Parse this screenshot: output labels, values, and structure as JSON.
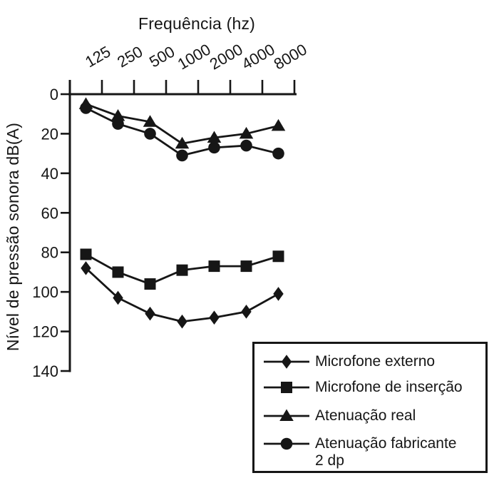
{
  "figure": {
    "background": "#ffffff",
    "ink": "#161616"
  },
  "chart_data": {
    "type": "line",
    "xlabel": "Frequência (hz)",
    "ylabel": "Nível de pressão sonora dB(A)",
    "x_axis_position": "top",
    "grid": false,
    "categories": [
      "125",
      "250",
      "500",
      "1000",
      "2000",
      "4000",
      "8000"
    ],
    "y_axis": {
      "inverted": true,
      "min": 0,
      "max": 140,
      "tick_step": 20,
      "ticks": [
        "0",
        "20",
        "40",
        "60",
        "80",
        "100",
        "120",
        "140"
      ]
    },
    "legend": {
      "position": "bottom-right",
      "boxed": true
    },
    "series": [
      {
        "name": "Microfone externo",
        "legend_lines": [
          "Microfone externo"
        ],
        "marker": "diamond",
        "color": "#161616",
        "values": [
          88,
          103,
          111,
          115,
          113,
          110,
          101
        ]
      },
      {
        "name": "Microfone de inserção",
        "legend_lines": [
          "Microfone de inserção"
        ],
        "marker": "square",
        "color": "#161616",
        "values": [
          81,
          90,
          96,
          89,
          87,
          87,
          82
        ]
      },
      {
        "name": "Atenuação real",
        "legend_lines": [
          "Atenuação real"
        ],
        "marker": "triangle",
        "color": "#161616",
        "values": [
          5,
          11,
          14,
          25,
          22,
          20,
          16
        ]
      },
      {
        "name": "Atenuação fabricante 2 dp",
        "legend_lines": [
          "Atenuação fabricante",
          "2 dp"
        ],
        "marker": "circle",
        "color": "#161616",
        "values": [
          7,
          15,
          20,
          31,
          27,
          26,
          30
        ]
      }
    ]
  }
}
